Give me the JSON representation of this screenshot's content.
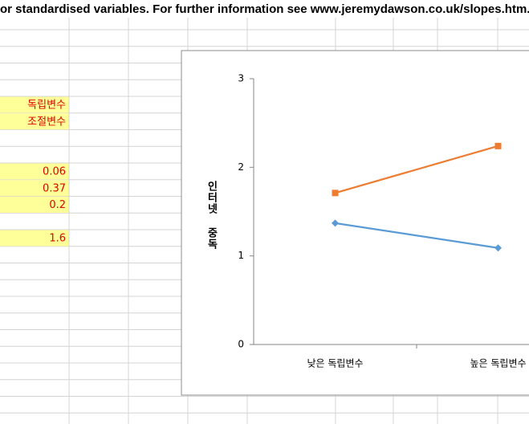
{
  "header_text": "or standardised variables. For further information see www.jeremydawson.co.uk/slopes.htm.",
  "cells": [
    "독립변수",
    "조절변수",
    "0.06",
    "0.37",
    "0.2",
    "1.6"
  ],
  "chart_data": {
    "type": "line",
    "y_label": "인터넷 중독",
    "categories": [
      "낮은 독립변수",
      "높은 독립변수"
    ],
    "series": [
      {
        "color": "#5b9bd5",
        "marker": "diamond",
        "values": [
          1.37,
          1.09
        ]
      },
      {
        "color": "#ed7d31",
        "marker": "square",
        "values": [
          1.71,
          2.24
        ]
      }
    ],
    "ylim": [
      0,
      3
    ],
    "yticks": [
      0,
      1,
      2,
      3
    ]
  }
}
